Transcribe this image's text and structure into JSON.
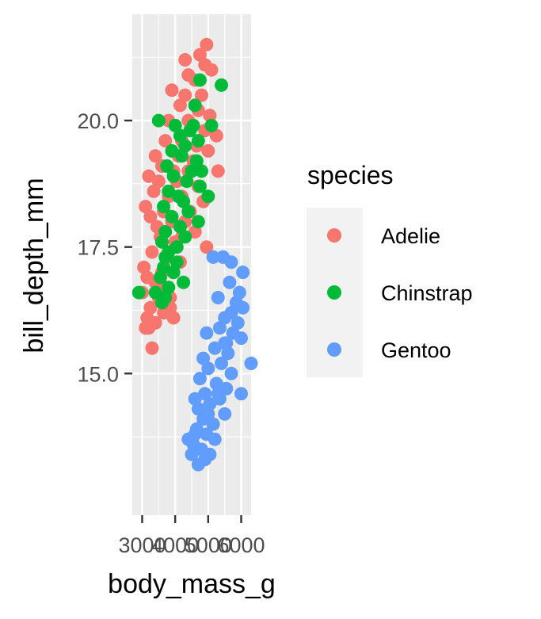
{
  "chart_data": {
    "type": "scatter",
    "xlabel": "body_mass_g",
    "ylabel": "bill_depth_mm",
    "xlim": [
      2700,
      6300
    ],
    "ylim": [
      12.2,
      22.1
    ],
    "x_ticks": [
      3000,
      4000,
      5000,
      6000
    ],
    "x_tick_labels": [
      "3000",
      "4000",
      "5000",
      "6000"
    ],
    "y_ticks": [
      15.0,
      17.5,
      20.0
    ],
    "y_tick_labels": [
      "15.0",
      "17.5",
      "20.0"
    ],
    "grid": true,
    "legend_title": "species",
    "legend_position": "right",
    "series": [
      {
        "name": "Adelie",
        "color": "#F8766D",
        "points": [
          [
            4950,
            21.5
          ],
          [
            4750,
            21.3
          ],
          [
            4300,
            21.2
          ],
          [
            4900,
            21.1
          ],
          [
            5100,
            21.0
          ],
          [
            4400,
            20.9
          ],
          [
            4600,
            20.8
          ],
          [
            3900,
            20.6
          ],
          [
            4300,
            20.5
          ],
          [
            4800,
            20.5
          ],
          [
            4150,
            20.3
          ],
          [
            4700,
            20.2
          ],
          [
            5050,
            20.1
          ],
          [
            3800,
            20.0
          ],
          [
            4400,
            20.0
          ],
          [
            4500,
            19.9
          ],
          [
            4900,
            19.8
          ],
          [
            5250,
            19.7
          ],
          [
            3700,
            19.6
          ],
          [
            4200,
            19.6
          ],
          [
            4650,
            19.5
          ],
          [
            5000,
            19.4
          ],
          [
            3400,
            19.3
          ],
          [
            4100,
            19.3
          ],
          [
            4550,
            19.2
          ],
          [
            3600,
            19.1
          ],
          [
            3950,
            19.0
          ],
          [
            4400,
            19.0
          ],
          [
            5300,
            19.0
          ],
          [
            3200,
            18.9
          ],
          [
            3500,
            18.8
          ],
          [
            4050,
            18.8
          ],
          [
            4700,
            18.7
          ],
          [
            3350,
            18.6
          ],
          [
            3800,
            18.5
          ],
          [
            4200,
            18.5
          ],
          [
            4850,
            18.4
          ],
          [
            3100,
            18.3
          ],
          [
            3650,
            18.2
          ],
          [
            4450,
            18.2
          ],
          [
            3250,
            18.1
          ],
          [
            3900,
            18.0
          ],
          [
            4300,
            18.0
          ],
          [
            3450,
            17.9
          ],
          [
            4600,
            17.8
          ],
          [
            3550,
            17.7
          ],
          [
            4000,
            17.6
          ],
          [
            4950,
            17.5
          ],
          [
            3300,
            17.4
          ],
          [
            3750,
            17.3
          ],
          [
            4150,
            17.2
          ],
          [
            3050,
            17.1
          ],
          [
            3600,
            17.0
          ],
          [
            3950,
            17.0
          ],
          [
            3150,
            16.9
          ],
          [
            3400,
            16.8
          ],
          [
            3700,
            16.7
          ],
          [
            3000,
            16.6
          ],
          [
            3500,
            16.5
          ],
          [
            3850,
            16.5
          ],
          [
            3250,
            16.3
          ],
          [
            3650,
            16.2
          ],
          [
            3150,
            16.1
          ],
          [
            3950,
            16.1
          ],
          [
            3400,
            16.0
          ],
          [
            3200,
            15.9
          ],
          [
            3300,
            15.5
          ],
          [
            3100,
            15.9
          ],
          [
            3850,
            16.3
          ],
          [
            4200,
            17.7
          ]
        ]
      },
      {
        "name": "Chinstrap",
        "color": "#00BA38",
        "points": [
          [
            4750,
            20.8
          ],
          [
            5400,
            20.7
          ],
          [
            4600,
            20.3
          ],
          [
            3500,
            20.0
          ],
          [
            4000,
            19.9
          ],
          [
            4550,
            19.9
          ],
          [
            5100,
            19.9
          ],
          [
            4450,
            19.8
          ],
          [
            4150,
            19.7
          ],
          [
            4700,
            19.6
          ],
          [
            4300,
            19.5
          ],
          [
            3900,
            19.4
          ],
          [
            4200,
            19.3
          ],
          [
            4650,
            19.2
          ],
          [
            3750,
            19.1
          ],
          [
            4500,
            19.0
          ],
          [
            4800,
            19.0
          ],
          [
            3950,
            18.9
          ],
          [
            4350,
            18.8
          ],
          [
            4750,
            18.7
          ],
          [
            3800,
            18.6
          ],
          [
            4100,
            18.5
          ],
          [
            5000,
            18.5
          ],
          [
            4250,
            18.4
          ],
          [
            3650,
            18.3
          ],
          [
            4400,
            18.2
          ],
          [
            3900,
            18.1
          ],
          [
            4700,
            18.0
          ],
          [
            4150,
            17.9
          ],
          [
            3700,
            17.8
          ],
          [
            4300,
            17.7
          ],
          [
            3600,
            17.6
          ],
          [
            4050,
            17.5
          ],
          [
            3800,
            17.4
          ],
          [
            3700,
            17.3
          ],
          [
            4050,
            17.2
          ],
          [
            3650,
            17.1
          ],
          [
            3950,
            17.0
          ],
          [
            3550,
            16.9
          ],
          [
            4250,
            16.8
          ],
          [
            3800,
            16.7
          ],
          [
            2900,
            16.6
          ],
          [
            3400,
            16.6
          ],
          [
            3700,
            16.5
          ],
          [
            3600,
            16.4
          ]
        ]
      },
      {
        "name": "Gentoo",
        "color": "#619CFF",
        "points": [
          [
            5150,
            17.3
          ],
          [
            5450,
            17.3
          ],
          [
            5700,
            17.2
          ],
          [
            6050,
            17.0
          ],
          [
            5650,
            16.8
          ],
          [
            5950,
            16.6
          ],
          [
            5300,
            16.5
          ],
          [
            5850,
            16.4
          ],
          [
            6050,
            16.3
          ],
          [
            5700,
            16.2
          ],
          [
            5500,
            16.1
          ],
          [
            5900,
            16.0
          ],
          [
            5350,
            15.9
          ],
          [
            5750,
            15.8
          ],
          [
            6000,
            15.7
          ],
          [
            4950,
            15.8
          ],
          [
            5550,
            15.6
          ],
          [
            5200,
            15.5
          ],
          [
            5600,
            15.4
          ],
          [
            4850,
            15.3
          ],
          [
            5400,
            15.2
          ],
          [
            6300,
            15.2
          ],
          [
            5000,
            15.1
          ],
          [
            5700,
            15.0
          ],
          [
            4750,
            14.9
          ],
          [
            5250,
            14.8
          ],
          [
            5550,
            14.7
          ],
          [
            4900,
            14.6
          ],
          [
            5350,
            14.5
          ],
          [
            4600,
            14.5
          ],
          [
            5050,
            14.4
          ],
          [
            4700,
            14.3
          ],
          [
            5500,
            14.2
          ],
          [
            4850,
            14.1
          ],
          [
            5150,
            14.0
          ],
          [
            4650,
            13.9
          ],
          [
            4950,
            13.8
          ],
          [
            4400,
            13.7
          ],
          [
            5200,
            13.7
          ],
          [
            4550,
            13.6
          ],
          [
            4800,
            13.5
          ],
          [
            4500,
            13.4
          ],
          [
            4900,
            13.3
          ],
          [
            4700,
            13.2
          ],
          [
            5050,
            13.4
          ],
          [
            4600,
            13.8
          ],
          [
            5000,
            14.2
          ],
          [
            5300,
            14.6
          ],
          [
            6000,
            14.6
          ],
          [
            5500,
            15.6
          ]
        ]
      }
    ]
  }
}
